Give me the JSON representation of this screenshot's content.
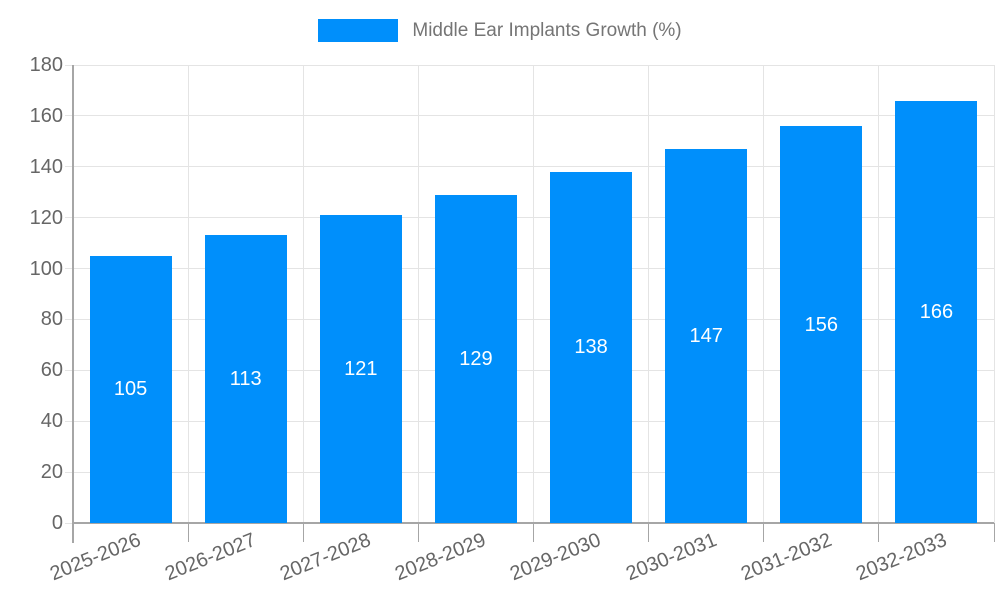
{
  "chart_data": {
    "type": "bar",
    "title": "",
    "legend": {
      "label": "Middle Ear Implants Growth (%)",
      "position": "top"
    },
    "categories": [
      "2025-2026",
      "2026-2027",
      "2027-2028",
      "2028-2029",
      "2029-2030",
      "2030-2031",
      "2031-2032",
      "2032-2033"
    ],
    "values": [
      105,
      113,
      121,
      129,
      138,
      147,
      156,
      166
    ],
    "xlabel": "",
    "ylabel": "",
    "ylim": [
      0,
      180
    ],
    "yticks": [
      0,
      20,
      40,
      60,
      80,
      100,
      120,
      140,
      160,
      180
    ],
    "grid": true,
    "data_labels": "inside-center",
    "colors": {
      "bar": "#008FFB",
      "bar_value_text": "#ffffff",
      "axis_text": "#666666",
      "legend_text": "#757575",
      "gridline": "#e4e4e4",
      "axis_line": "#a6a6a6",
      "background": "#ffffff"
    }
  }
}
